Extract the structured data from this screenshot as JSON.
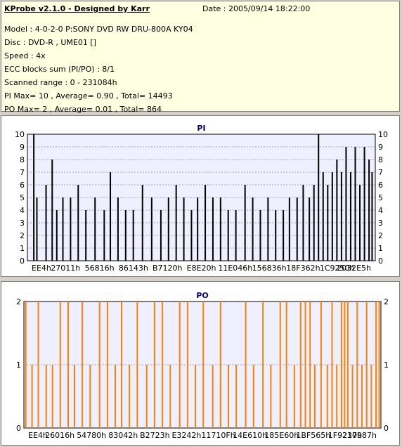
{
  "header": {
    "title": "KProbe v2.1.0 - Designed by Karr",
    "date": "Date : 2005/09/14 18:22:00",
    "lines": [
      "Model : 4-0-2-0 P:SONY    DVD RW DRU-800A  KY04",
      "Disc : DVD-R , UME01 []",
      "Speed : 4x",
      "ECC blocks sum (PI/PO) : 8/1",
      "Scanned range : 0 - 231084h",
      "PI Max= 10 , Average= 0.90 , Total= 14493",
      "PO Max= 2 , Average= 0.01 , Total= 864"
    ]
  },
  "colors": {
    "pi_bars": "#000000",
    "po_bars": "#ff7f00",
    "plot_bg": "#eef0ff",
    "title_text": "#000080"
  },
  "chart_data": [
    {
      "type": "bar",
      "title": "PI",
      "ylim": [
        0,
        10
      ],
      "yticks": [
        "0",
        "1",
        "2",
        "3",
        "4",
        "5",
        "6",
        "7",
        "8",
        "9",
        "10"
      ],
      "xticks": [
        "EE4h",
        "27011h",
        "56816h",
        "86143h",
        "B7120h",
        "E8E20h",
        "11E046h",
        "156836h",
        "18F362h",
        "1C9250h",
        "2032E5h"
      ],
      "xlim": [
        3812,
        231084
      ],
      "series": [
        {
          "x": [
            8000,
            10000,
            16000,
            20000,
            23000,
            27000,
            32000,
            37000,
            42000,
            48000,
            54000,
            58000,
            63000,
            68000,
            73000,
            79000,
            85000,
            91000,
            96000,
            101000,
            106000,
            111000,
            115000,
            120000,
            125000,
            130000,
            135000,
            140000,
            146000,
            151000,
            156000,
            161000,
            166000,
            171000,
            175000,
            180000,
            184000,
            188000,
            191000,
            194000,
            197000,
            200000,
            203000,
            206000,
            209000,
            212000,
            215000,
            218000,
            221000,
            224000,
            227000,
            229000
          ],
          "values": [
            10,
            5,
            6,
            8,
            4,
            5,
            5,
            6,
            4,
            5,
            4,
            7,
            5,
            4,
            4,
            6,
            5,
            4,
            5,
            6,
            5,
            4,
            5,
            6,
            5,
            5,
            4,
            4,
            6,
            5,
            4,
            5,
            4,
            4,
            5,
            5,
            6,
            5,
            6,
            10,
            7,
            6,
            7,
            8,
            7,
            9,
            7,
            9,
            6,
            9,
            8,
            7
          ]
        }
      ]
    },
    {
      "type": "bar",
      "title": "PO",
      "ylim": [
        0,
        2
      ],
      "yticks": [
        "0",
        "1",
        "2"
      ],
      "xticks": [
        "EE4h",
        "26016h",
        "54780h",
        "83042h",
        "B2723h",
        "E3242h",
        "11710Fh",
        "14E610h",
        "185E60h",
        "1BF565h",
        "1F9217h",
        "230987h"
      ],
      "xlim": [
        3812,
        231084
      ],
      "series": [
        {
          "x": [
            5000,
            9000,
            13000,
            18000,
            22000,
            27000,
            32000,
            36000,
            41000,
            46000,
            52000,
            57000,
            62000,
            66000,
            71000,
            76000,
            82000,
            87000,
            92000,
            97000,
            103000,
            108000,
            113000,
            118000,
            124000,
            129000,
            134000,
            139000,
            145000,
            150000,
            156000,
            161000,
            167000,
            171000,
            176000,
            180000,
            183000,
            186000,
            189000,
            193000,
            197000,
            200000,
            203000,
            206000,
            208000,
            210000,
            213000,
            216000,
            219000,
            222000,
            225000,
            228000,
            230000
          ],
          "values": [
            2,
            1,
            2,
            1,
            1,
            2,
            2,
            1,
            2,
            1,
            2,
            2,
            1,
            2,
            1,
            2,
            1,
            2,
            2,
            1,
            2,
            2,
            1,
            2,
            1,
            2,
            1,
            1,
            2,
            1,
            2,
            1,
            2,
            2,
            1,
            2,
            2,
            2,
            1,
            2,
            1,
            2,
            1,
            2,
            2,
            2,
            1,
            2,
            1,
            2,
            1,
            2,
            2
          ]
        }
      ]
    }
  ]
}
